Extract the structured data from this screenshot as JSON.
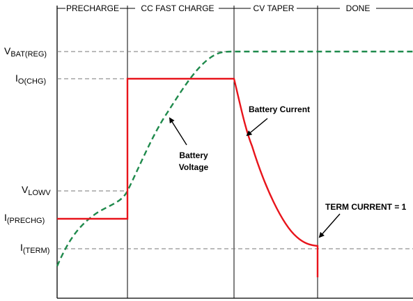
{
  "phases": [
    "PRECHARGE",
    "CC FAST CHARGE",
    "CV TAPER",
    "DONE"
  ],
  "levels": {
    "vbat_reg": {
      "main": "V",
      "sub": "BAT(REG)"
    },
    "io_chg": {
      "main": "I",
      "sub": "O(CHG)"
    },
    "vlowv": {
      "main": "V",
      "sub": "LOWV"
    },
    "i_prechg": {
      "main": "I",
      "sub": "(PRECHG)"
    },
    "i_term": {
      "main": "I",
      "sub": "(TERM)"
    }
  },
  "annotations": {
    "battery_current": "Battery Current",
    "battery_voltage_line1": "Battery",
    "battery_voltage_line2": "Voltage",
    "term_current": "TERM CURRENT  = 1"
  },
  "colors": {
    "current": "#e8141b",
    "voltage": "#1f8a4c",
    "axis": "#000000",
    "guide": "#777777"
  }
}
